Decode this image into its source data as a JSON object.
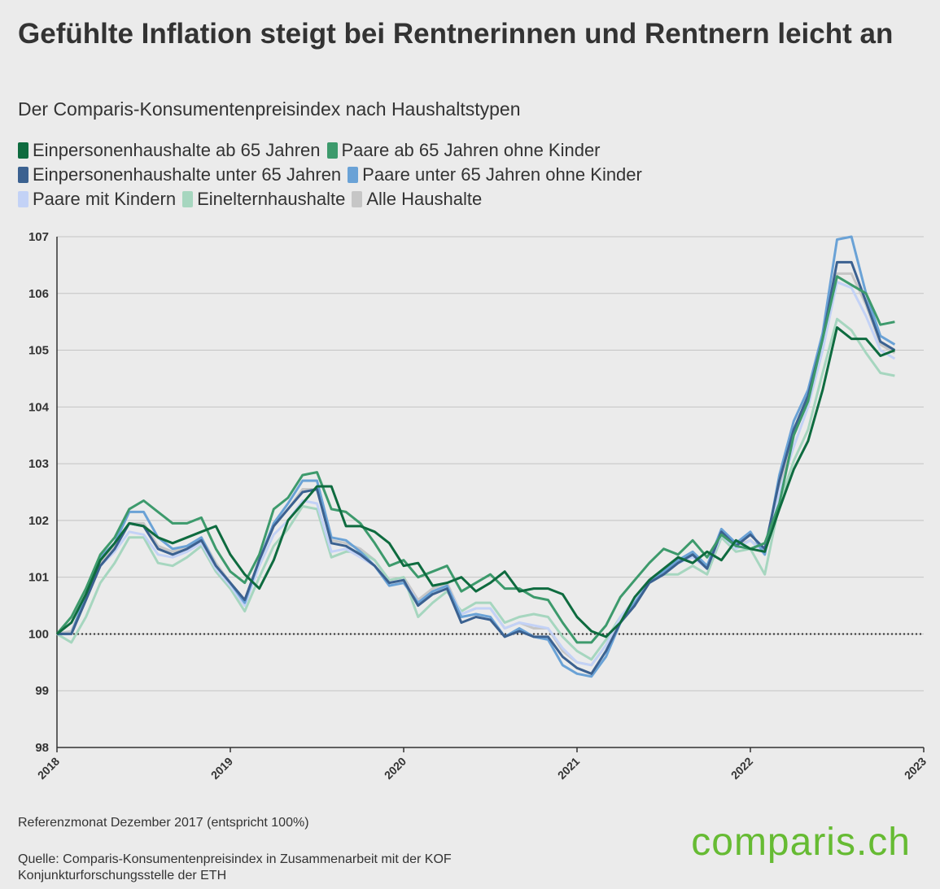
{
  "chart_data": {
    "type": "line",
    "title": "Gefühlte Inflation steigt bei Rentnerinnen und Rentnern leicht an",
    "subtitle": "Der Comparis-Konsumentenpreisindex nach Haushaltstypen",
    "note": "Referenzmonat Dezember 2017 (entspricht 100%)",
    "source": "Quelle: Comparis-Konsumentenpreisindex in Zusammenarbeit mit der KOF Konjunkturforschungsstelle der ETH",
    "logo": "comparis.ch",
    "xlim": [
      2018,
      2023
    ],
    "xticks": [
      2018,
      2019,
      2020,
      2021,
      2022,
      2023
    ],
    "ylim": [
      98,
      107
    ],
    "yticks": [
      98,
      99,
      100,
      101,
      102,
      103,
      104,
      105,
      106,
      107
    ],
    "grid": true,
    "reference_line": 100,
    "x": [
      2018,
      2018.083,
      2018.167,
      2018.25,
      2018.333,
      2018.417,
      2018.5,
      2018.583,
      2018.667,
      2018.75,
      2018.833,
      2018.917,
      2019,
      2019.083,
      2019.167,
      2019.25,
      2019.333,
      2019.417,
      2019.5,
      2019.583,
      2019.667,
      2019.75,
      2019.833,
      2019.917,
      2020,
      2020.083,
      2020.167,
      2020.25,
      2020.333,
      2020.417,
      2020.5,
      2020.583,
      2020.667,
      2020.75,
      2020.833,
      2020.917,
      2021,
      2021.083,
      2021.167,
      2021.25,
      2021.333,
      2021.417,
      2021.5,
      2021.583,
      2021.667,
      2021.75,
      2021.833,
      2021.917,
      2022,
      2022.083,
      2022.167,
      2022.25,
      2022.333,
      2022.417,
      2022.5,
      2022.583,
      2022.667,
      2022.75,
      2022.833
    ],
    "series": [
      {
        "name": "Einpersonenhaushalte ab 65 Jahren",
        "color": "#0e6b3f",
        "values": [
          100.0,
          100.2,
          100.7,
          101.3,
          101.6,
          101.95,
          101.9,
          101.7,
          101.6,
          101.7,
          101.8,
          101.9,
          101.4,
          101.05,
          100.8,
          101.3,
          102.0,
          102.3,
          102.6,
          102.6,
          101.9,
          101.9,
          101.8,
          101.6,
          101.2,
          101.25,
          100.85,
          100.9,
          101.0,
          100.75,
          100.9,
          101.1,
          100.75,
          100.8,
          100.8,
          100.7,
          100.3,
          100.05,
          99.95,
          100.2,
          100.65,
          100.95,
          101.15,
          101.35,
          101.25,
          101.45,
          101.3,
          101.65,
          101.5,
          101.45,
          102.2,
          102.9,
          103.4,
          104.3,
          105.4,
          105.2,
          105.2,
          104.9,
          105.0
        ]
      },
      {
        "name": "Paare ab 65 Jahren ohne Kinder",
        "color": "#3d9a6c",
        "values": [
          100.0,
          100.3,
          100.8,
          101.4,
          101.7,
          102.2,
          102.35,
          102.15,
          101.95,
          101.95,
          102.05,
          101.5,
          101.1,
          100.9,
          101.4,
          102.2,
          102.4,
          102.8,
          102.85,
          102.2,
          102.15,
          101.95,
          101.6,
          101.2,
          101.3,
          101.0,
          101.1,
          101.2,
          100.75,
          100.9,
          101.05,
          100.8,
          100.8,
          100.65,
          100.6,
          100.2,
          99.85,
          99.85,
          100.15,
          100.65,
          100.95,
          101.25,
          101.5,
          101.4,
          101.65,
          101.35,
          101.75,
          101.55,
          101.5,
          101.6,
          102.3,
          103.5,
          104.1,
          105.2,
          106.3,
          106.15,
          106.0,
          105.45,
          105.5
        ]
      },
      {
        "name": "Einpersonenhaushalte unter 65 Jahren",
        "color": "#3b6190",
        "values": [
          100.0,
          100.0,
          100.6,
          101.2,
          101.5,
          101.95,
          101.9,
          101.5,
          101.4,
          101.5,
          101.65,
          101.2,
          100.9,
          100.6,
          101.3,
          101.9,
          102.2,
          102.5,
          102.55,
          101.6,
          101.55,
          101.4,
          101.2,
          100.9,
          100.95,
          100.5,
          100.7,
          100.8,
          100.2,
          100.3,
          100.25,
          99.95,
          100.05,
          99.95,
          99.95,
          99.6,
          99.4,
          99.3,
          99.7,
          100.2,
          100.5,
          100.9,
          101.05,
          101.25,
          101.4,
          101.15,
          101.8,
          101.55,
          101.75,
          101.5,
          102.7,
          103.6,
          104.2,
          105.2,
          106.55,
          106.55,
          105.85,
          105.15,
          105.0
        ]
      },
      {
        "name": "Paare unter 65 Jahren ohne Kinder",
        "color": "#6aa2d6",
        "values": [
          100.0,
          100.0,
          100.7,
          101.35,
          101.6,
          102.15,
          102.15,
          101.7,
          101.5,
          101.55,
          101.7,
          101.2,
          100.9,
          100.55,
          101.3,
          101.95,
          102.3,
          102.7,
          102.7,
          101.7,
          101.65,
          101.45,
          101.2,
          100.85,
          100.9,
          100.55,
          100.75,
          100.85,
          100.3,
          100.35,
          100.3,
          99.95,
          100.1,
          99.95,
          99.9,
          99.45,
          99.3,
          99.25,
          99.6,
          100.2,
          100.55,
          100.9,
          101.1,
          101.3,
          101.45,
          101.2,
          101.85,
          101.6,
          101.8,
          101.4,
          102.8,
          103.75,
          104.3,
          105.3,
          106.95,
          107.0,
          106.0,
          105.25,
          105.1
        ]
      },
      {
        "name": "Paare mit Kindern",
        "color": "#c3d2f6",
        "values": [
          100.0,
          100.0,
          100.6,
          101.2,
          101.45,
          101.8,
          101.75,
          101.4,
          101.35,
          101.45,
          101.6,
          101.15,
          100.85,
          100.5,
          101.2,
          101.75,
          102.0,
          102.35,
          102.3,
          101.45,
          101.5,
          101.35,
          101.2,
          100.9,
          100.95,
          100.55,
          100.75,
          100.85,
          100.35,
          100.45,
          100.45,
          100.1,
          100.2,
          100.15,
          100.1,
          99.75,
          99.5,
          99.45,
          99.8,
          100.3,
          100.6,
          100.9,
          101.05,
          101.25,
          101.35,
          101.15,
          101.75,
          101.5,
          101.65,
          101.4,
          102.5,
          103.3,
          104.0,
          105.0,
          106.2,
          106.1,
          105.6,
          105.0,
          104.85
        ]
      },
      {
        "name": "Einelternhaushalte",
        "color": "#a6d6bf",
        "values": [
          100.0,
          99.85,
          100.3,
          100.9,
          101.25,
          101.7,
          101.7,
          101.25,
          101.2,
          101.35,
          101.55,
          101.1,
          100.8,
          100.4,
          101.0,
          101.55,
          101.85,
          102.25,
          102.2,
          101.35,
          101.45,
          101.45,
          101.3,
          100.95,
          101.0,
          100.3,
          100.55,
          100.75,
          100.4,
          100.55,
          100.55,
          100.2,
          100.3,
          100.35,
          100.3,
          99.95,
          99.7,
          99.55,
          99.9,
          100.3,
          100.6,
          100.9,
          101.05,
          101.05,
          101.2,
          101.05,
          101.7,
          101.45,
          101.5,
          101.05,
          102.3,
          103.05,
          103.6,
          104.6,
          105.55,
          105.35,
          104.95,
          104.6,
          104.55
        ]
      },
      {
        "name": "Alle Haushalte",
        "color": "#c6c6c6",
        "values": [
          100.0,
          100.05,
          100.65,
          101.25,
          101.55,
          101.95,
          101.95,
          101.55,
          101.45,
          101.55,
          101.7,
          101.25,
          100.9,
          100.6,
          101.3,
          101.9,
          102.2,
          102.55,
          102.55,
          101.65,
          101.6,
          101.5,
          101.3,
          100.95,
          101.0,
          100.6,
          100.8,
          100.9,
          100.35,
          100.45,
          100.45,
          100.1,
          100.2,
          100.1,
          100.1,
          99.7,
          99.5,
          99.45,
          99.8,
          100.3,
          100.6,
          100.95,
          101.1,
          101.3,
          101.4,
          101.2,
          101.75,
          101.55,
          101.65,
          101.45,
          102.6,
          103.5,
          104.1,
          105.1,
          106.35,
          106.35,
          105.8,
          105.1,
          104.95
        ]
      }
    ]
  }
}
